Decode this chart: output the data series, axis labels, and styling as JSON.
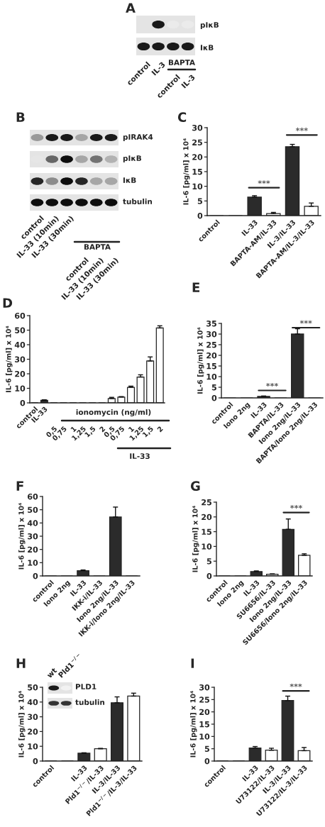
{
  "chart_data": [
    {
      "type": "other",
      "title": "A",
      "annotations": [
        "pIκB",
        "IκB",
        "control",
        "IL-3",
        "BAPTA",
        "control",
        "IL-3"
      ]
    },
    {
      "type": "other",
      "title": "B",
      "annotations": [
        "pIRAK4",
        "pIκB",
        "IκB",
        "tubulin",
        "control",
        "IL-33 (10min)",
        "IL-33 (30min)",
        "BAPTA",
        "control",
        "IL-33 (10min)",
        "IL-33 (30min)"
      ]
    },
    {
      "type": "bar",
      "title": "C",
      "ylabel": "IL-6 [pg/ml] x 10⁴",
      "categories": [
        "control",
        null,
        "IL-33",
        "BAPTA-AM/IL-33",
        "IL-3/IL-33",
        "BAPTA-AM/IL-3/IL-33"
      ],
      "values": [
        0,
        0,
        6.3,
        0.7,
        23.5,
        3.2
      ],
      "errors": [
        null,
        null,
        0.5,
        0.4,
        0.8,
        1.1
      ],
      "colors": [
        "#222222",
        "#222222",
        "#2b2b2b",
        "#ffffff",
        "#2b2b2b",
        "#ffffff"
      ],
      "ylim": [
        0,
        30
      ],
      "yticks": [
        0,
        5,
        10,
        15,
        20,
        25,
        30
      ],
      "annotations": [
        "***",
        "***"
      ]
    },
    {
      "type": "bar",
      "title": "D",
      "ylabel": "IL-6 [pg/ml] x 10⁴",
      "categories": [
        "control",
        "IL-33",
        "0,5",
        "0,75",
        "1",
        "1,25",
        "1,5",
        "2",
        "0,5",
        "0,75",
        "1",
        "1,25",
        "1,5",
        "2"
      ],
      "values": [
        0,
        1.8,
        0,
        0,
        0,
        0,
        0,
        0,
        3.0,
        4.0,
        10.7,
        17.8,
        28.8,
        51.5
      ],
      "errors": [
        null,
        0.3,
        null,
        null,
        null,
        null,
        null,
        null,
        0.8,
        0.3,
        0.8,
        1.5,
        2.8,
        1.5
      ],
      "colors": [
        "#222222",
        "#2b2b2b",
        "#222222",
        "#222222",
        "#222222",
        "#222222",
        "#222222",
        "#222222",
        "#ffffff",
        "#ffffff",
        "#ffffff",
        "#ffffff",
        "#ffffff",
        "#ffffff"
      ],
      "ylim": [
        0,
        60
      ],
      "yticks": [
        0,
        10,
        20,
        30,
        40,
        50,
        60
      ],
      "annotations": [
        "ionomycin (ng/ml)",
        "IL-33"
      ]
    },
    {
      "type": "bar",
      "title": "E",
      "ylabel": "IL-6 [pg/ml] x 10⁴",
      "categories": [
        "control",
        "Iono 2ng",
        "IL-33",
        "BAPTA/IL-33",
        "Iono 2ng/IL-33",
        "BAPTA/Iono 2ng/IL-33"
      ],
      "values": [
        0,
        0,
        0.7,
        0,
        30,
        0
      ],
      "errors": [
        null,
        null,
        0.2,
        null,
        2.5,
        null
      ],
      "colors": [
        "#222222",
        "#222222",
        "#2b2b2b",
        "#222222",
        "#2b2b2b",
        "#222222"
      ],
      "ylim": [
        0,
        35
      ],
      "yticks": [
        0,
        5,
        10,
        15,
        20,
        25,
        30,
        35
      ],
      "annotations": [
        "***",
        "***"
      ]
    },
    {
      "type": "bar",
      "title": "F",
      "ylabel": "IL-6 [pg/ml] x 10⁴",
      "categories": [
        "control",
        "Iono 2ng",
        "IL-33",
        "IKK-i/IL-33",
        "Iono 2ng/IL-33",
        "IKK-i/Iono 2ng/IL-33"
      ],
      "values": [
        0,
        0,
        4,
        0,
        44.5,
        0
      ],
      "errors": [
        null,
        null,
        0.5,
        null,
        7.5,
        null
      ],
      "colors": [
        "#222222",
        "#222222",
        "#2b2b2b",
        "#222222",
        "#2b2b2b",
        "#222222"
      ],
      "ylim": [
        0,
        60
      ],
      "yticks": [
        0,
        10,
        20,
        30,
        40,
        50,
        60
      ]
    },
    {
      "type": "bar",
      "title": "G",
      "ylabel": "IL-6 [pg/ml] x 10⁴",
      "categories": [
        "control",
        "Iono 2ng",
        "IL-33",
        "SU6656/IL-33",
        "Iono 2ng/IL-33",
        "SU6656/Iono 2ng/IL-33"
      ],
      "values": [
        0,
        0,
        1.5,
        0.6,
        15.8,
        7
      ],
      "errors": [
        null,
        null,
        0.2,
        0.1,
        3.5,
        0.5
      ],
      "colors": [
        "#222222",
        "#222222",
        "#2b2b2b",
        "#ffffff",
        "#2b2b2b",
        "#ffffff"
      ],
      "ylim": [
        0,
        25
      ],
      "yticks": [
        0,
        5,
        10,
        15,
        20,
        25
      ],
      "annotations": [
        "***"
      ]
    },
    {
      "type": "bar",
      "title": "H",
      "ylabel": "IL-6 [pg/ml] x 10⁴",
      "categories": [
        "control",
        null,
        "IL-33",
        "Pld1$^{−/−}$/IL-33",
        "IL-3/IL-33",
        "Pld1$^{−/−}$/IL-3/IL-33"
      ],
      "values": [
        0,
        0,
        5.3,
        8.3,
        39.5,
        44
      ],
      "errors": [
        null,
        null,
        0.3,
        0.3,
        4,
        2
      ],
      "colors": [
        "#222222",
        "#222222",
        "#2b2b2b",
        "#ffffff",
        "#2b2b2b",
        "#ffffff"
      ],
      "ylim": [
        0,
        50
      ],
      "yticks": [
        0,
        10,
        20,
        30,
        40,
        50
      ],
      "annotations": [
        "wt",
        "Pld1$^{−/−}$",
        "PLD1",
        "tubulin"
      ]
    },
    {
      "type": "bar",
      "title": "I",
      "ylabel": "IL-6 [pg/ml] x 10⁴",
      "categories": [
        "control",
        null,
        "IL-33",
        "U73122/IL-33",
        "IL-3/IL-33",
        "U73122/IL-3/IL-33"
      ],
      "values": [
        0,
        0,
        5.3,
        4.4,
        24.6,
        4.2
      ],
      "errors": [
        null,
        null,
        0.6,
        0.8,
        1.8,
        1.3
      ],
      "colors": [
        "#222222",
        "#222222",
        "#2b2b2b",
        "#ffffff",
        "#2b2b2b",
        "#ffffff"
      ],
      "ylim": [
        0,
        30
      ],
      "yticks": [
        0,
        5,
        10,
        15,
        20,
        25,
        30
      ],
      "annotations": [
        "***"
      ]
    }
  ]
}
